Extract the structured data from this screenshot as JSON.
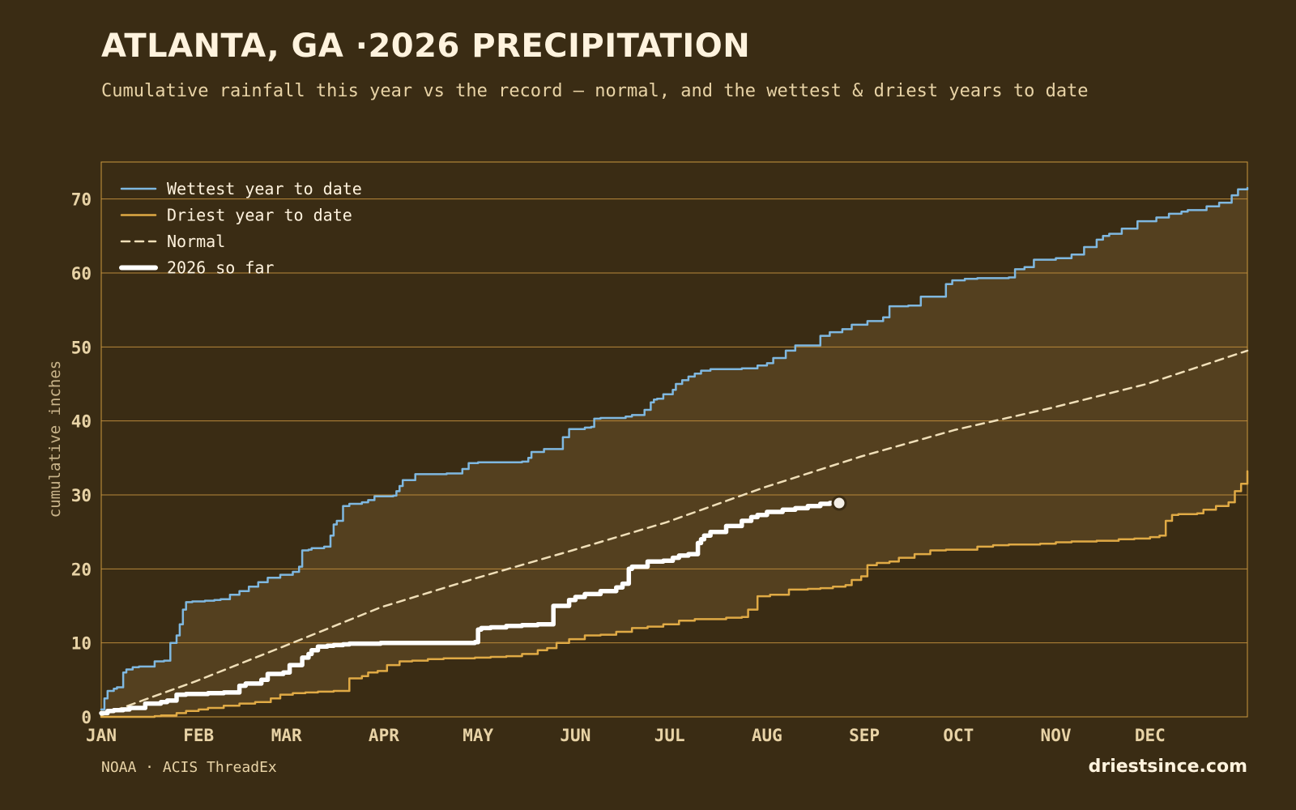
{
  "header": {
    "title": "ATLANTA, GA ·2026 PRECIPITATION",
    "subtitle": "Cumulative rainfall this year vs the record — normal, and the wettest & driest years to date"
  },
  "footer": {
    "source": "NOAA · ACIS ThreadEx",
    "brand": "driestsince.com"
  },
  "colors": {
    "background": "#3a2c14",
    "plot_background": "#3a2c14",
    "band_fill": "#54401f",
    "frame": "#c9973e",
    "grid": "#b8873a",
    "wettest": "#7fb8e0",
    "driest": "#e0aa45",
    "normal": "#f0dfb8",
    "this_year": "#ffffff"
  },
  "chart_data": {
    "type": "line",
    "xlabel": "",
    "ylabel": "cumulative inches",
    "x_unit": "day of year",
    "xlim": [
      1,
      366
    ],
    "ylim": [
      0,
      75
    ],
    "yticks": [
      0,
      10,
      20,
      30,
      40,
      50,
      60,
      70
    ],
    "xticks": [
      {
        "day": 1,
        "label": "JAN"
      },
      {
        "day": 32,
        "label": "FEB"
      },
      {
        "day": 60,
        "label": "MAR"
      },
      {
        "day": 91,
        "label": "APR"
      },
      {
        "day": 121,
        "label": "MAY"
      },
      {
        "day": 152,
        "label": "JUN"
      },
      {
        "day": 182,
        "label": "JUL"
      },
      {
        "day": 213,
        "label": "AUG"
      },
      {
        "day": 244,
        "label": "SEP"
      },
      {
        "day": 274,
        "label": "OCT"
      },
      {
        "day": 305,
        "label": "NOV"
      },
      {
        "day": 335,
        "label": "DEC"
      }
    ],
    "grid": true,
    "legend_position": "top-left",
    "band_between": [
      "Driest year to date",
      "Wettest year to date"
    ],
    "series": [
      {
        "name": "Wettest year to date",
        "style": "solid",
        "x": [
          1,
          2,
          3,
          5,
          6,
          8,
          9,
          11,
          13,
          14,
          18,
          21,
          23,
          25,
          26,
          27,
          28,
          30,
          34,
          37,
          39,
          42,
          45,
          48,
          51,
          54,
          58,
          62,
          64,
          65,
          67,
          68,
          72,
          74,
          75,
          76,
          78,
          80,
          84,
          86,
          88,
          94,
          95,
          96,
          97,
          101,
          111,
          116,
          118,
          121,
          135,
          137,
          138,
          142,
          147,
          148,
          150,
          155,
          157,
          158,
          160,
          168,
          170,
          174,
          176,
          177,
          178,
          180,
          183,
          184,
          186,
          188,
          190,
          192,
          195,
          205,
          210,
          213,
          215,
          219,
          222,
          230,
          233,
          237,
          240,
          245,
          250,
          252,
          258,
          262,
          270,
          272,
          276,
          280,
          290,
          292,
          295,
          298,
          305,
          310,
          314,
          318,
          320,
          322,
          326,
          331,
          337,
          341,
          345,
          347,
          353,
          357,
          361,
          363,
          366
        ],
        "values": [
          1.0,
          2.5,
          3.5,
          3.8,
          4.0,
          6.0,
          6.4,
          6.7,
          6.8,
          6.8,
          7.5,
          7.6,
          10.0,
          11.0,
          12.5,
          14.5,
          15.5,
          15.6,
          15.7,
          15.8,
          15.9,
          16.5,
          17.0,
          17.6,
          18.2,
          18.8,
          19.2,
          19.6,
          20.3,
          22.5,
          22.6,
          22.8,
          23.0,
          24.5,
          26.0,
          26.5,
          28.5,
          28.8,
          29.0,
          29.3,
          29.8,
          29.9,
          30.5,
          31.2,
          32.0,
          32.8,
          32.9,
          33.5,
          34.3,
          34.4,
          34.5,
          35.0,
          35.8,
          36.2,
          36.2,
          37.8,
          38.9,
          39.1,
          39.2,
          40.3,
          40.4,
          40.6,
          40.8,
          41.5,
          42.5,
          42.9,
          43.0,
          43.6,
          44.2,
          45.0,
          45.5,
          46.0,
          46.4,
          46.8,
          47.0,
          47.1,
          47.5,
          47.8,
          48.5,
          49.5,
          50.2,
          51.5,
          52.0,
          52.4,
          53.0,
          53.5,
          54.0,
          55.5,
          55.6,
          56.8,
          58.5,
          59.0,
          59.2,
          59.3,
          59.4,
          60.5,
          60.8,
          61.8,
          62.0,
          62.5,
          63.5,
          64.5,
          65.0,
          65.3,
          66.0,
          67.0,
          67.5,
          68.0,
          68.3,
          68.5,
          69.0,
          69.5,
          70.5,
          71.3,
          71.5
        ]
      },
      {
        "name": "Driest year to date",
        "style": "solid",
        "x": [
          1,
          10,
          18,
          20,
          25,
          28,
          32,
          35,
          40,
          45,
          50,
          55,
          58,
          62,
          66,
          70,
          75,
          80,
          84,
          86,
          89,
          92,
          96,
          100,
          105,
          110,
          120,
          125,
          130,
          135,
          140,
          143,
          146,
          150,
          155,
          160,
          165,
          170,
          175,
          180,
          185,
          190,
          200,
          205,
          207,
          210,
          214,
          220,
          226,
          230,
          234,
          238,
          240,
          243,
          245,
          248,
          252,
          255,
          260,
          265,
          270,
          280,
          285,
          290,
          300,
          305,
          310,
          318,
          325,
          330,
          335,
          338,
          340,
          342,
          344,
          350,
          352,
          356,
          360,
          362,
          364,
          366
        ],
        "values": [
          0,
          0,
          0.1,
          0.2,
          0.5,
          0.8,
          1.0,
          1.2,
          1.5,
          1.8,
          2.0,
          2.5,
          3.0,
          3.2,
          3.3,
          3.4,
          3.5,
          5.2,
          5.5,
          6.0,
          6.2,
          7.0,
          7.5,
          7.6,
          7.8,
          7.9,
          8.0,
          8.1,
          8.2,
          8.5,
          9.0,
          9.3,
          10.0,
          10.5,
          11.0,
          11.1,
          11.5,
          12.0,
          12.2,
          12.5,
          13.0,
          13.2,
          13.4,
          13.5,
          14.5,
          16.3,
          16.5,
          17.2,
          17.3,
          17.4,
          17.6,
          17.8,
          18.5,
          19.0,
          20.5,
          20.8,
          21.0,
          21.5,
          22.0,
          22.5,
          22.6,
          23.0,
          23.2,
          23.3,
          23.4,
          23.6,
          23.7,
          23.8,
          24.0,
          24.1,
          24.3,
          24.5,
          26.5,
          27.3,
          27.4,
          27.5,
          28.0,
          28.5,
          29.0,
          30.5,
          31.5,
          33.2
        ]
      },
      {
        "name": "Normal",
        "style": "dashed",
        "x": [
          1,
          31,
          59,
          90,
          120,
          151,
          181,
          212,
          243,
          273,
          304,
          334,
          366
        ],
        "values": [
          0.2,
          4.8,
          9.5,
          14.8,
          18.7,
          22.5,
          26.3,
          31.0,
          35.2,
          38.8,
          41.8,
          45.0,
          49.5
        ]
      },
      {
        "name": "2026 so far",
        "style": "thick",
        "x": [
          1,
          3,
          5,
          8,
          10,
          15,
          20,
          22,
          25,
          28,
          35,
          40,
          45,
          47,
          52,
          54,
          59,
          61,
          65,
          67,
          68,
          70,
          73,
          75,
          78,
          80,
          85,
          90,
          100,
          110,
          120,
          121,
          122,
          125,
          130,
          135,
          140,
          145,
          150,
          152,
          155,
          160,
          165,
          167,
          169,
          170,
          175,
          180,
          183,
          185,
          188,
          191,
          192,
          193,
          195,
          200,
          205,
          208,
          210,
          213,
          218,
          222,
          226,
          230,
          233,
          236
        ],
        "values": [
          0.5,
          0.8,
          0.9,
          1.0,
          1.2,
          1.8,
          2.0,
          2.2,
          3.0,
          3.1,
          3.2,
          3.3,
          4.2,
          4.5,
          5.0,
          5.8,
          6.0,
          7.0,
          8.0,
          8.5,
          9.0,
          9.5,
          9.6,
          9.7,
          9.8,
          9.9,
          9.9,
          10.0,
          10.0,
          10.0,
          10.1,
          11.8,
          12.0,
          12.1,
          12.3,
          12.4,
          12.5,
          15.0,
          15.8,
          16.2,
          16.6,
          17.0,
          17.5,
          18.0,
          20.0,
          20.3,
          21.0,
          21.1,
          21.5,
          21.8,
          22.0,
          23.5,
          24.0,
          24.5,
          25.0,
          25.8,
          26.5,
          27.0,
          27.3,
          27.7,
          28.0,
          28.2,
          28.5,
          28.8,
          28.9,
          28.9
        ]
      }
    ],
    "current_marker": {
      "x": 236,
      "value": 28.9
    }
  }
}
